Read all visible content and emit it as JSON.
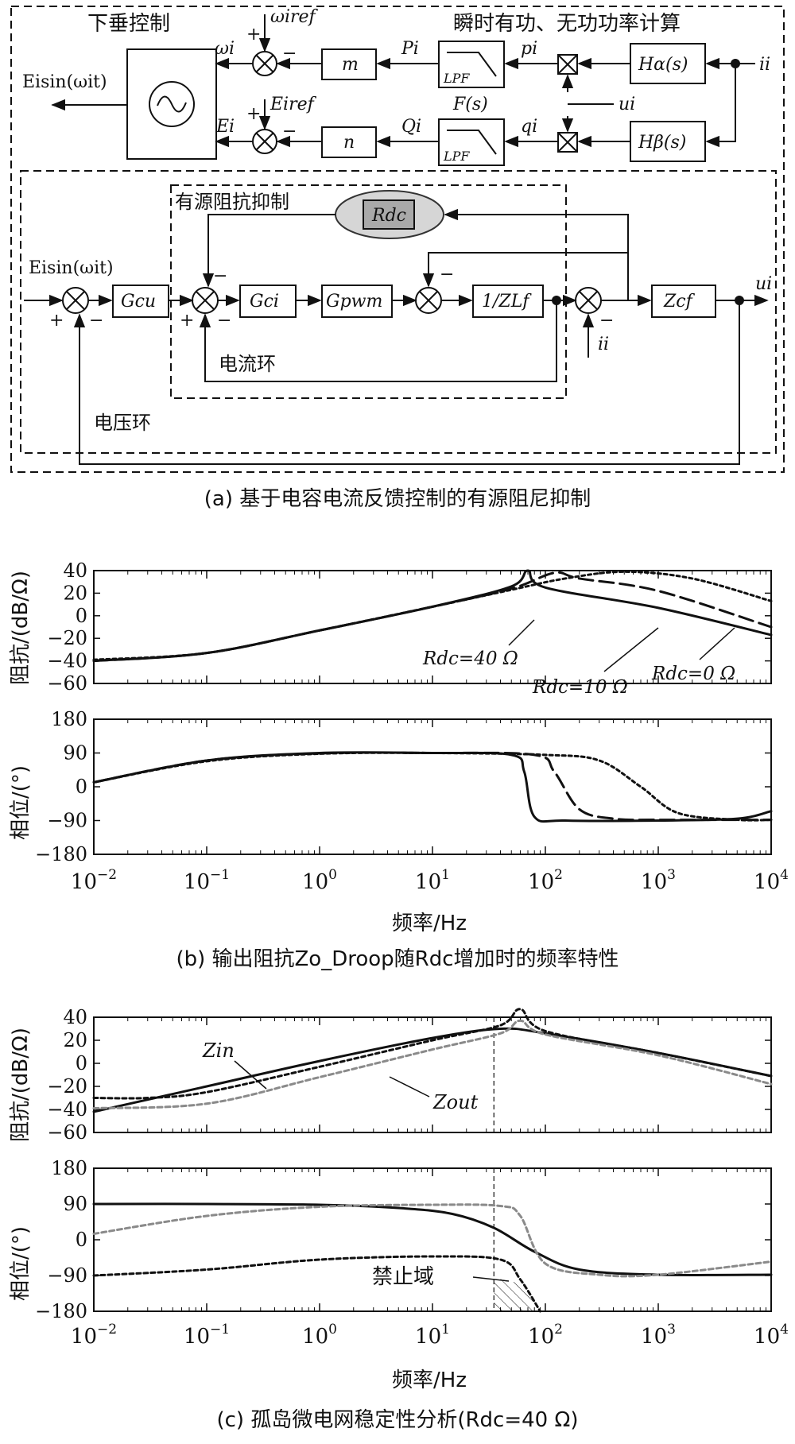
{
  "diagram_a": {
    "title_droop": "下垂控制",
    "title_power": "瞬时有功、无功功率计算",
    "label_active_damping": "有源阻抗抑制",
    "label_current_loop": "电流环",
    "label_voltage_loop": "电压环",
    "caption": "(a) 基于电容电流反馈控制的有源阻尼抑制",
    "signals": {
      "omega_iref": "ωiref",
      "E_iref": "Eiref",
      "omega_i": "ωi",
      "E_i": "Ei",
      "P_i": "Pi",
      "Q_i": "Qi",
      "p_i": "pi",
      "q_i": "qi",
      "u_i": "ui",
      "i_i": "ii",
      "Fs": "F(s)",
      "out_sine": "Eisin(ωit)",
      "in_sine": "Eisin(ωit)"
    },
    "blocks": {
      "m": "m",
      "n": "n",
      "lpf": "LPF",
      "H_alpha": "Hα(s)",
      "H_beta": "Hβ(s)",
      "R_dc": "Rdc",
      "G_cu": "Gcu",
      "G_ci": "Gci",
      "G_pwm": "Gpwm",
      "Z_Lf": "1/ZLf",
      "Z_cf": "Zcf"
    }
  },
  "chart_b": {
    "caption": "(b) 输出阻抗Zo_Droop随Rdc增加时的频率特性",
    "ylabel_mag": "阻抗/(dB/Ω)",
    "ylabel_phase": "相位/(°)",
    "xlabel": "频率/Hz",
    "annotations": [
      "Rdc=40 Ω",
      "Rdc=10 Ω",
      "Rdc=0 Ω"
    ]
  },
  "chart_c": {
    "caption": "(c) 孤岛微电网稳定性分析(Rdc=40 Ω)",
    "ylabel_mag": "阻抗/(dB/Ω)",
    "ylabel_phase": "相位/(°)",
    "xlabel": "频率/Hz",
    "label_zin": "Zin",
    "label_zout": "Zout",
    "label_forbidden": "禁止域"
  },
  "chart_data": [
    {
      "type": "line",
      "panel": "b-magnitude",
      "x_scale": "log",
      "xlim": [
        0.01,
        10000
      ],
      "ylim": [
        -60,
        40
      ],
      "yticks": [
        40,
        20,
        0,
        -20,
        -40,
        -60
      ],
      "grid": false,
      "series": [
        {
          "name": "Rdc=40 Ω",
          "style": "solid",
          "x": [
            0.01,
            0.1,
            1,
            10,
            50,
            70,
            100,
            1000,
            10000
          ],
          "y": [
            -40,
            -33,
            -13,
            8,
            26,
            40,
            25,
            7,
            -17
          ]
        },
        {
          "name": "Rdc=10 Ω",
          "style": "dashed",
          "x": [
            0.01,
            0.1,
            1,
            10,
            50,
            120,
            200,
            1000,
            10000
          ],
          "y": [
            -40,
            -33,
            -13,
            8,
            24,
            38,
            33,
            22,
            -10
          ]
        },
        {
          "name": "Rdc=0 Ω",
          "style": "dotted",
          "x": [
            0.01,
            0.1,
            1,
            10,
            50,
            150,
            500,
            2000,
            10000
          ],
          "y": [
            -39,
            -33,
            -13,
            8,
            23,
            33,
            39,
            33,
            13
          ]
        }
      ]
    },
    {
      "type": "line",
      "panel": "b-phase",
      "x_scale": "log",
      "xlim": [
        0.01,
        10000
      ],
      "ylim": [
        -180,
        180
      ],
      "yticks": [
        180,
        90,
        0,
        -90,
        -180
      ],
      "grid": false,
      "series": [
        {
          "name": "Rdc=40 Ω",
          "style": "solid",
          "x": [
            0.01,
            0.1,
            1,
            10,
            50,
            65,
            80,
            150,
            1000,
            5000,
            10000
          ],
          "y": [
            12,
            70,
            90,
            90,
            85,
            40,
            -80,
            -90,
            -90,
            -85,
            -65
          ]
        },
        {
          "name": "Rdc=10 Ω",
          "style": "dashed",
          "x": [
            0.01,
            0.1,
            1,
            10,
            80,
            120,
            200,
            400,
            1000,
            10000
          ],
          "y": [
            12,
            70,
            89,
            90,
            85,
            40,
            -60,
            -85,
            -88,
            -88
          ]
        },
        {
          "name": "Rdc=0 Ω",
          "style": "dotted",
          "x": [
            0.01,
            0.1,
            1,
            10,
            100,
            300,
            700,
            1500,
            5000,
            10000
          ],
          "y": [
            12,
            68,
            88,
            90,
            85,
            70,
            0,
            -70,
            -88,
            -88
          ]
        }
      ]
    },
    {
      "type": "line",
      "panel": "c-magnitude",
      "x_scale": "log",
      "xlim": [
        0.01,
        10000
      ],
      "ylim": [
        -60,
        40
      ],
      "yticks": [
        40,
        20,
        0,
        -20,
        -40,
        -60
      ],
      "grid": false,
      "vline_x": 35,
      "series": [
        {
          "name": "Zin",
          "style": "solid",
          "x": [
            0.01,
            0.1,
            1,
            10,
            40,
            100,
            1000,
            10000
          ],
          "y": [
            -42,
            -20,
            2,
            22,
            30,
            26,
            9,
            -11
          ]
        },
        {
          "name": "",
          "style": "dotted-black",
          "x": [
            0.01,
            0.03,
            0.1,
            1,
            10,
            40,
            60,
            100,
            1000,
            10000
          ],
          "y": [
            -30,
            -30,
            -25,
            -3,
            20,
            33,
            47,
            28,
            9,
            -11
          ]
        },
        {
          "name": "Zout",
          "style": "dotted-gray",
          "x": [
            0.01,
            0.1,
            1,
            10,
            40,
            60,
            100,
            1000,
            10000
          ],
          "y": [
            -39,
            -35,
            -12,
            12,
            26,
            37,
            25,
            7,
            -18
          ]
        }
      ]
    },
    {
      "type": "line",
      "panel": "c-phase",
      "x_scale": "log",
      "xlim": [
        0.01,
        10000
      ],
      "ylim": [
        -180,
        180
      ],
      "yticks": [
        180,
        90,
        0,
        -90,
        -180
      ],
      "grid": false,
      "vline_x": 35,
      "series": [
        {
          "name": "Zin",
          "style": "solid",
          "x": [
            0.01,
            0.1,
            1,
            5,
            15,
            35,
            80,
            200,
            1000,
            10000
          ],
          "y": [
            90,
            90,
            88,
            80,
            65,
            30,
            -30,
            -75,
            -88,
            -88
          ]
        },
        {
          "name": "Zout",
          "style": "dotted-gray",
          "x": [
            0.01,
            0.1,
            1,
            10,
            40,
            60,
            100,
            300,
            1000,
            10000
          ],
          "y": [
            15,
            60,
            83,
            88,
            85,
            60,
            -60,
            -88,
            -88,
            -55
          ]
        },
        {
          "name": "",
          "style": "dotted-black",
          "x": [
            0.01,
            0.1,
            1,
            10,
            40,
            60,
            90
          ],
          "y": [
            -90,
            -75,
            -50,
            -42,
            -50,
            -100,
            -180
          ]
        }
      ]
    }
  ]
}
